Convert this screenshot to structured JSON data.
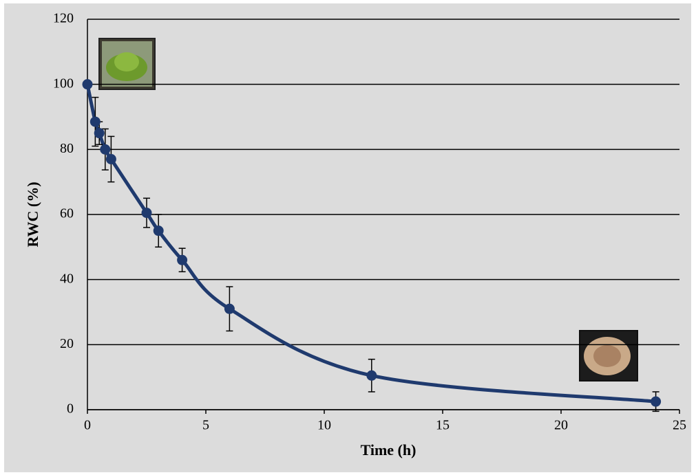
{
  "chart_data": {
    "type": "line",
    "x_label": "Time (h)",
    "y_label": "RWC (%)",
    "x": [
      0,
      0.33,
      0.5,
      0.75,
      1,
      2.5,
      3,
      4,
      6,
      12,
      24
    ],
    "series": [
      {
        "color": "#1f3a6e",
        "values": [
          100,
          88.5,
          85,
          80,
          77,
          60.5,
          55,
          46,
          31,
          10.5,
          2.5
        ],
        "errors": [
          null,
          7.5,
          3.5,
          6.3,
          7,
          4.5,
          5,
          3.6,
          6.8,
          5,
          3
        ]
      }
    ],
    "xlim": [
      0,
      25
    ],
    "xticks": [
      0,
      5,
      10,
      15,
      20,
      25
    ],
    "ylim": [
      0,
      120
    ],
    "yticks": [
      0,
      20,
      40,
      60,
      80,
      100,
      120
    ],
    "grid": true
  }
}
